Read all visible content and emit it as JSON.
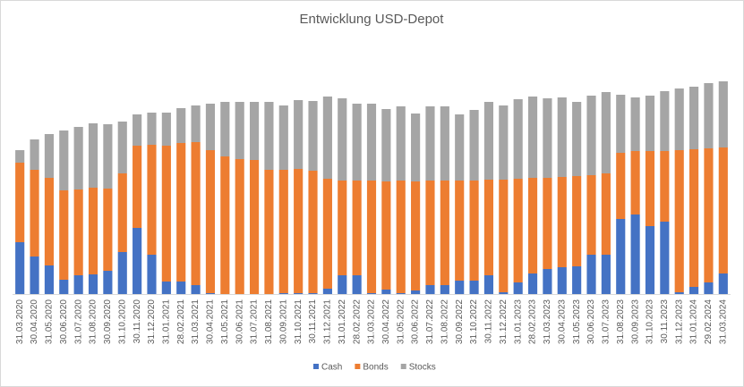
{
  "chart_data": {
    "type": "stacked_bar",
    "title": "Entwicklung USD-Depot",
    "categories": [
      "31.03.2020",
      "30.04.2020",
      "31.05.2020",
      "30.06.2020",
      "31.07.2020",
      "31.08.2020",
      "30.09.2020",
      "31.10.2020",
      "30.11.2020",
      "31.12.2020",
      "31.01.2021",
      "28.02.2021",
      "31.03.2021",
      "30.04.2021",
      "31.05.2021",
      "30.06.2021",
      "31.07.2021",
      "31.08.2021",
      "30.09.2021",
      "31.10.2021",
      "30.11.2021",
      "31.12.2021",
      "31.01.2022",
      "28.02.2022",
      "31.03.2022",
      "30.04.2022",
      "31.05.2022",
      "30.06.2022",
      "31.07.2022",
      "31.08.2022",
      "30.09.2022",
      "31.10.2022",
      "30.11.2022",
      "31.12.2022",
      "31.01.2023",
      "28.02.2023",
      "31.03.2023",
      "30.04.2023",
      "31.05.2023",
      "30.06.2023",
      "31.07.2023",
      "31.08.2023",
      "30.09.2023",
      "31.10.2023",
      "30.11.2023",
      "31.12.2023",
      "31.01.2024",
      "29.02.2024",
      "31.03.2024"
    ],
    "series": [
      {
        "name": "Cash",
        "color": "#4472c4",
        "values": [
          58,
          42,
          32,
          16,
          21,
          22,
          26,
          47,
          74,
          44,
          14,
          14,
          10,
          1,
          0,
          0,
          0,
          0,
          1,
          1,
          1,
          6,
          21,
          21,
          1,
          5,
          1,
          4,
          10,
          10,
          15,
          15,
          21,
          2,
          13,
          23,
          28,
          30,
          31,
          44,
          44,
          84,
          89,
          76,
          81,
          2,
          8,
          13,
          23
        ]
      },
      {
        "name": "Bonds",
        "color": "#ed7d31",
        "values": [
          89,
          97,
          98,
          100,
          96,
          97,
          92,
          88,
          92,
          123,
          152,
          155,
          160,
          160,
          154,
          151,
          150,
          139,
          138,
          139,
          137,
          123,
          106,
          106,
          126,
          121,
          126,
          122,
          117,
          117,
          112,
          112,
          107,
          126,
          116,
          107,
          102,
          101,
          101,
          89,
          91,
          74,
          71,
          84,
          79,
          159,
          154,
          150,
          141
        ]
      },
      {
        "name": "Stocks",
        "color": "#a5a5a5",
        "values": [
          14,
          34,
          49,
          67,
          70,
          72,
          72,
          58,
          35,
          36,
          37,
          39,
          41,
          52,
          61,
          64,
          65,
          76,
          72,
          77,
          78,
          92,
          92,
          86,
          86,
          81,
          83,
          76,
          83,
          83,
          74,
          79,
          87,
          83,
          89,
          91,
          89,
          89,
          83,
          89,
          91,
          65,
          60,
          62,
          67,
          69,
          70,
          73,
          74
        ]
      }
    ]
  }
}
